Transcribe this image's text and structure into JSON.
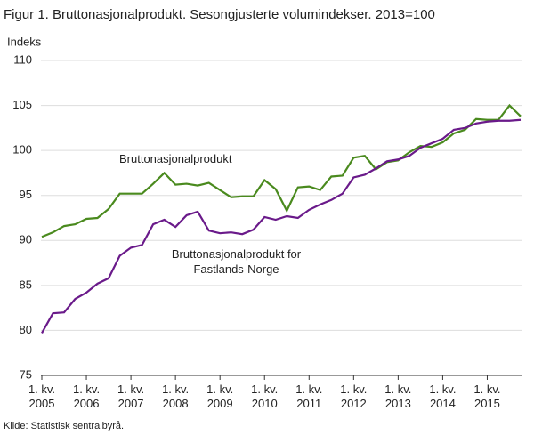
{
  "chart_data": {
    "type": "line",
    "title": "Figur 1. Bruttonasjonalprodukt. Sesongjusterte volumindekser. 2013=100",
    "y_label": "Indeks",
    "source": "Kilde: Statistisk sentralbyrå.",
    "categories": [
      "1. kv. 2005",
      null,
      null,
      null,
      "1. kv. 2006",
      null,
      null,
      null,
      "1. kv. 2007",
      null,
      null,
      null,
      "1. kv. 2008",
      null,
      null,
      null,
      "1. kv. 2009",
      null,
      null,
      null,
      "1. kv. 2010",
      null,
      null,
      null,
      "1. kv. 2011",
      null,
      null,
      null,
      "1. kv. 2012",
      null,
      null,
      null,
      "1. kv. 2013",
      null,
      null,
      null,
      "1. kv. 2014",
      null,
      null,
      null,
      "1. kv. 2015",
      null,
      null,
      null
    ],
    "series": [
      {
        "name": "Bruttonasjonalprodukt",
        "color": "#4a8a1e",
        "values": [
          90.4,
          90.9,
          91.6,
          91.8,
          92.4,
          92.5,
          93.5,
          95.2,
          95.2,
          95.2,
          96.3,
          97.5,
          96.2,
          96.3,
          96.1,
          96.4,
          95.6,
          94.8,
          94.9,
          94.9,
          96.7,
          95.7,
          93.3,
          95.9,
          96.0,
          95.6,
          97.1,
          97.2,
          99.2,
          99.4,
          97.9,
          98.7,
          98.9,
          99.8,
          100.5,
          100.4,
          100.9,
          101.9,
          102.3,
          103.5,
          103.4,
          103.4,
          105.0,
          103.8
        ]
      },
      {
        "name": "Bruttonasjonalprodukt  for Fastlands-Norge",
        "color": "#6a1a8a",
        "values": [
          79.7,
          81.9,
          82.0,
          83.5,
          84.2,
          85.2,
          85.8,
          88.3,
          89.2,
          89.5,
          91.8,
          92.3,
          91.5,
          92.8,
          93.2,
          91.1,
          90.8,
          90.9,
          90.7,
          91.2,
          92.6,
          92.3,
          92.7,
          92.5,
          93.4,
          94.0,
          94.5,
          95.2,
          97.0,
          97.3,
          98.0,
          98.8,
          99.0,
          99.4,
          100.3,
          100.8,
          101.3,
          102.3,
          102.5,
          103.0,
          103.2,
          103.3,
          103.3,
          103.4
        ]
      }
    ],
    "ylim": [
      75,
      110
    ],
    "yticks": [
      75,
      80,
      85,
      90,
      95,
      100,
      105,
      110
    ],
    "grid": true
  }
}
